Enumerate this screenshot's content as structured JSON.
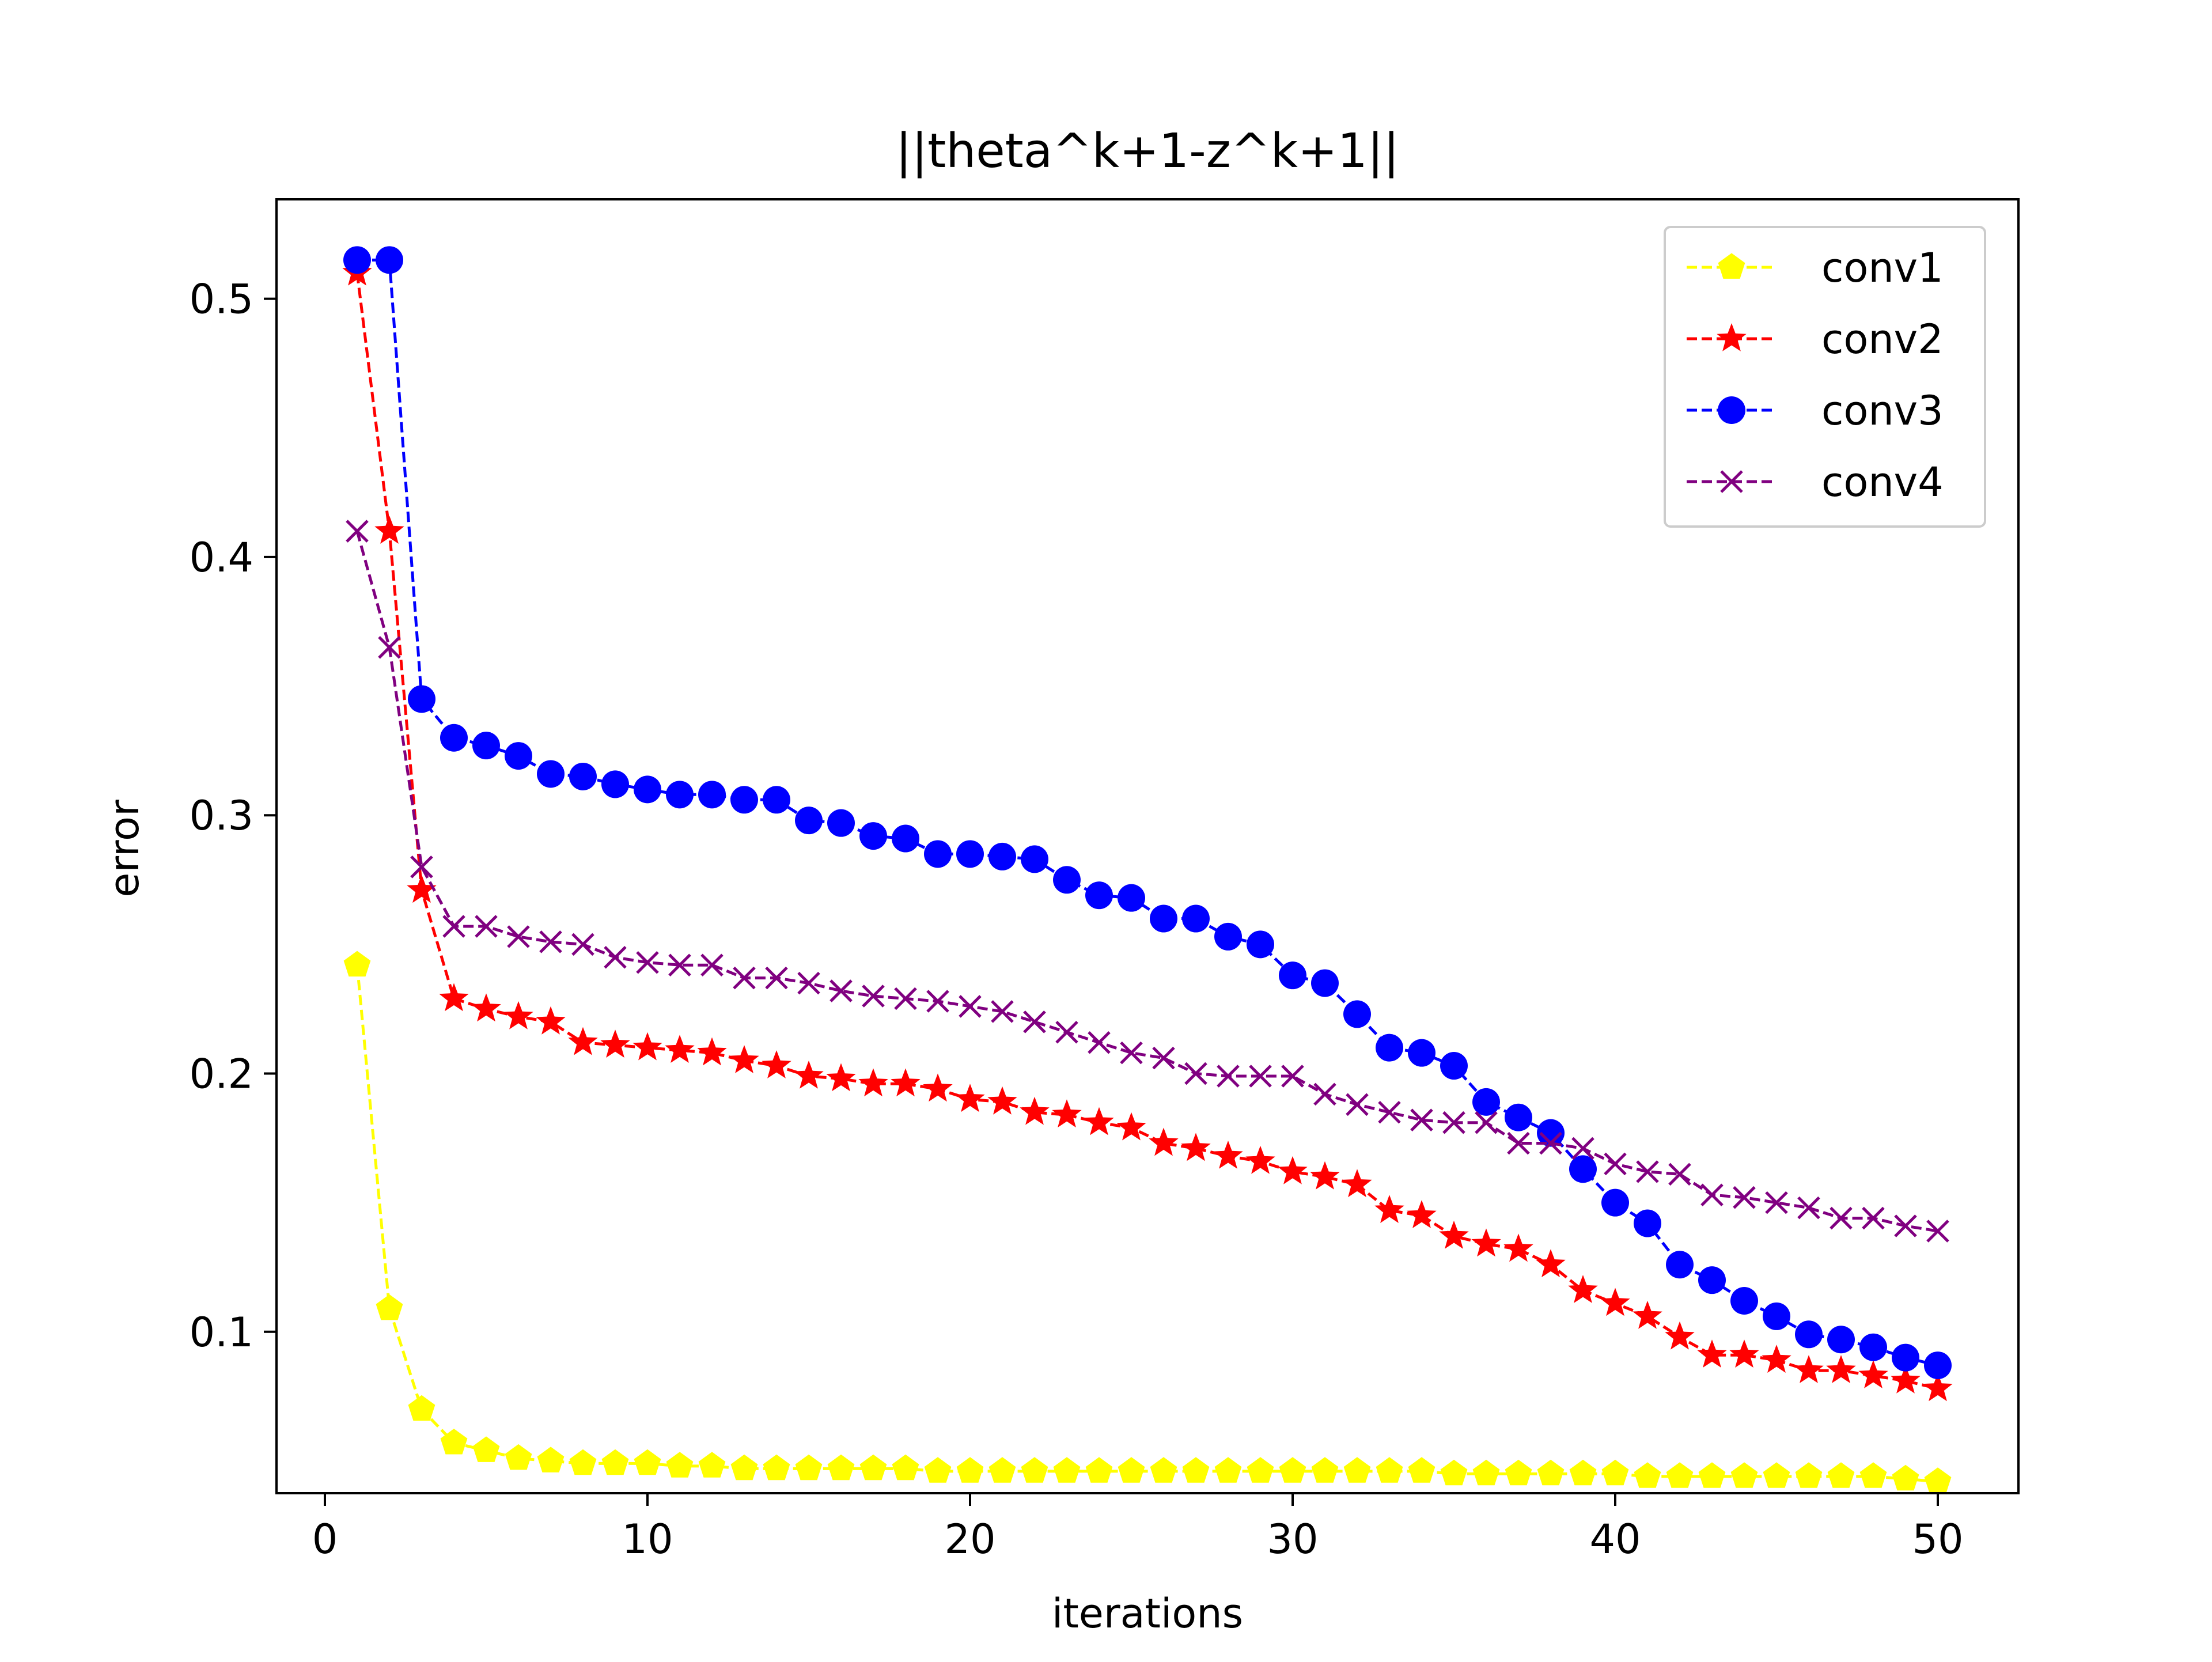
{
  "chart_data": {
    "type": "line",
    "title": "||theta^k+1-z^k+1||",
    "xlabel": "iterations",
    "ylabel": "error",
    "xlim": [
      -1.5,
      52.5
    ],
    "ylim": [
      0.0375,
      0.5385
    ],
    "xticks": [
      0,
      10,
      20,
      30,
      40,
      50
    ],
    "yticks": [
      0.1,
      0.2,
      0.3,
      0.4,
      0.5
    ],
    "xtick_labels": [
      "0",
      "10",
      "20",
      "30",
      "40",
      "50"
    ],
    "ytick_labels": [
      "0.1",
      "0.2",
      "0.3",
      "0.4",
      "0.5"
    ],
    "grid": false,
    "legend_position": "top-right",
    "x": [
      1,
      2,
      3,
      4,
      5,
      6,
      7,
      8,
      9,
      10,
      11,
      12,
      13,
      14,
      15,
      16,
      17,
      18,
      19,
      20,
      21,
      22,
      23,
      24,
      25,
      26,
      27,
      28,
      29,
      30,
      31,
      32,
      33,
      34,
      35,
      36,
      37,
      38,
      39,
      40,
      41,
      42,
      43,
      44,
      45,
      46,
      47,
      48,
      49,
      50
    ],
    "series": [
      {
        "name": "conv1",
        "color": "#ffff00",
        "marker": "pentagon",
        "values": [
          0.242,
          0.109,
          0.07,
          0.057,
          0.054,
          0.051,
          0.05,
          0.049,
          0.049,
          0.049,
          0.048,
          0.048,
          0.047,
          0.047,
          0.047,
          0.047,
          0.047,
          0.047,
          0.046,
          0.046,
          0.046,
          0.046,
          0.046,
          0.046,
          0.046,
          0.046,
          0.046,
          0.046,
          0.046,
          0.046,
          0.046,
          0.046,
          0.046,
          0.046,
          0.045,
          0.045,
          0.045,
          0.045,
          0.045,
          0.045,
          0.044,
          0.044,
          0.044,
          0.044,
          0.044,
          0.044,
          0.044,
          0.044,
          0.043,
          0.042
        ]
      },
      {
        "name": "conv2",
        "color": "#ff0000",
        "marker": "star",
        "values": [
          0.51,
          0.41,
          0.271,
          0.229,
          0.225,
          0.222,
          0.22,
          0.212,
          0.211,
          0.21,
          0.209,
          0.208,
          0.205,
          0.203,
          0.199,
          0.198,
          0.196,
          0.196,
          0.194,
          0.19,
          0.189,
          0.185,
          0.184,
          0.181,
          0.179,
          0.173,
          0.171,
          0.168,
          0.166,
          0.162,
          0.16,
          0.157,
          0.147,
          0.145,
          0.137,
          0.134,
          0.132,
          0.126,
          0.116,
          0.111,
          0.106,
          0.098,
          0.091,
          0.091,
          0.089,
          0.085,
          0.085,
          0.083,
          0.081,
          0.078
        ]
      },
      {
        "name": "conv3",
        "color": "#0000ff",
        "marker": "circle",
        "values": [
          0.515,
          0.515,
          0.345,
          0.33,
          0.327,
          0.323,
          0.316,
          0.315,
          0.312,
          0.31,
          0.308,
          0.308,
          0.306,
          0.306,
          0.298,
          0.297,
          0.292,
          0.291,
          0.285,
          0.285,
          0.284,
          0.283,
          0.275,
          0.269,
          0.268,
          0.26,
          0.26,
          0.253,
          0.25,
          0.238,
          0.235,
          0.223,
          0.21,
          0.208,
          0.203,
          0.189,
          0.183,
          0.177,
          0.163,
          0.15,
          0.142,
          0.126,
          0.12,
          0.112,
          0.106,
          0.099,
          0.097,
          0.094,
          0.09,
          0.087
        ]
      },
      {
        "name": "conv4",
        "color": "#800080",
        "marker": "x",
        "values": [
          0.41,
          0.365,
          0.28,
          0.257,
          0.257,
          0.253,
          0.251,
          0.25,
          0.245,
          0.243,
          0.242,
          0.242,
          0.237,
          0.237,
          0.235,
          0.232,
          0.23,
          0.229,
          0.228,
          0.226,
          0.224,
          0.22,
          0.216,
          0.212,
          0.208,
          0.206,
          0.2,
          0.199,
          0.199,
          0.199,
          0.192,
          0.188,
          0.185,
          0.182,
          0.181,
          0.181,
          0.173,
          0.173,
          0.171,
          0.165,
          0.162,
          0.161,
          0.153,
          0.152,
          0.15,
          0.148,
          0.144,
          0.144,
          0.141,
          0.139
        ]
      }
    ]
  }
}
